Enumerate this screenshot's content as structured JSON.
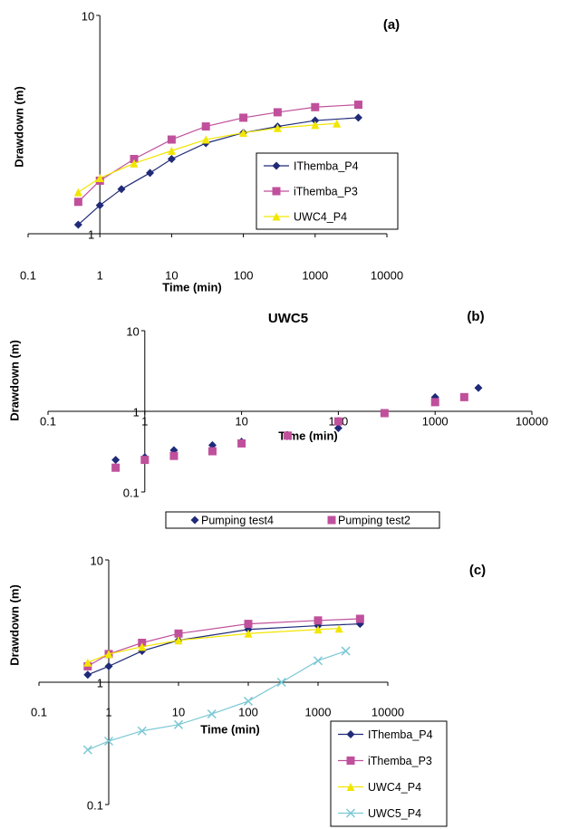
{
  "chart_data": [
    {
      "type": "line",
      "panel_label": "(a)",
      "x_label": "Time (min)",
      "y_label": "Drawdown (m)",
      "log_x": true,
      "log_y": true,
      "xlim": [
        0.1,
        10000
      ],
      "ylim": [
        1,
        10
      ],
      "xticks": [
        0.1,
        1,
        10,
        100,
        1000,
        10000
      ],
      "yticks": [
        1,
        10
      ],
      "axes_cross": [
        1,
        1
      ],
      "legend": "lower right",
      "series": [
        {
          "name": "IThemba_P4",
          "color": "#1f2a78",
          "marker": "diamond",
          "x": [
            0.5,
            1,
            2,
            5,
            10,
            30,
            100,
            300,
            1000,
            4000
          ],
          "values": [
            1.1,
            1.35,
            1.6,
            1.9,
            2.2,
            2.6,
            2.9,
            3.1,
            3.3,
            3.4
          ]
        },
        {
          "name": "iThemba_P3",
          "color": "#c0509c",
          "marker": "square",
          "x": [
            0.5,
            1,
            3,
            10,
            30,
            100,
            300,
            1000,
            4000
          ],
          "values": [
            1.4,
            1.75,
            2.2,
            2.7,
            3.1,
            3.4,
            3.6,
            3.8,
            3.9
          ]
        },
        {
          "name": "UWC4_P4",
          "color": "#f2e600",
          "marker": "triangle",
          "x": [
            0.5,
            1,
            3,
            10,
            30,
            100,
            300,
            1000,
            2000
          ],
          "values": [
            1.55,
            1.8,
            2.1,
            2.4,
            2.7,
            2.9,
            3.05,
            3.15,
            3.2
          ]
        }
      ]
    },
    {
      "type": "scatter",
      "title": "UWC5",
      "panel_label": "(b)",
      "x_label": "Time (min)",
      "y_label": "Drawdown (m)",
      "log_x": true,
      "log_y": true,
      "xlim": [
        0.1,
        10000
      ],
      "ylim": [
        0.1,
        10
      ],
      "xticks": [
        0.1,
        1,
        10,
        100,
        1000,
        10000
      ],
      "yticks": [
        0.1,
        1,
        10
      ],
      "axes_cross": [
        1,
        1
      ],
      "legend": "bottom",
      "series": [
        {
          "name": "Pumping test4",
          "color": "#1f2a78",
          "marker": "diamond",
          "x": [
            0.5,
            1,
            2,
            5,
            10,
            30,
            100,
            300,
            1000,
            2800
          ],
          "values": [
            0.25,
            0.27,
            0.33,
            0.38,
            0.42,
            0.5,
            0.62,
            0.95,
            1.5,
            1.95
          ]
        },
        {
          "name": "Pumping test2",
          "color": "#c0509c",
          "marker": "square",
          "x": [
            0.5,
            1,
            2,
            5,
            10,
            30,
            100,
            300,
            1000,
            2000
          ],
          "values": [
            0.2,
            0.25,
            0.28,
            0.32,
            0.4,
            0.5,
            0.75,
            0.95,
            1.3,
            1.5
          ]
        }
      ]
    },
    {
      "type": "line",
      "panel_label": "(c)",
      "x_label": "Time (min)",
      "y_label": "Drawdown (m)",
      "log_x": true,
      "log_y": true,
      "xlim": [
        0.1,
        10000
      ],
      "ylim": [
        0.1,
        10
      ],
      "xticks": [
        0.1,
        1,
        10,
        100,
        1000,
        10000
      ],
      "yticks": [
        0.1,
        1,
        10
      ],
      "axes_cross": [
        1,
        1
      ],
      "legend": "lower right",
      "series": [
        {
          "name": "IThemba_P4",
          "color": "#1f2a78",
          "marker": "diamond",
          "x": [
            0.5,
            1,
            3,
            10,
            100,
            1000,
            4000
          ],
          "values": [
            1.15,
            1.35,
            1.8,
            2.2,
            2.7,
            2.9,
            3.0
          ]
        },
        {
          "name": "iThemba_P3",
          "color": "#c0509c",
          "marker": "square",
          "x": [
            0.5,
            1,
            3,
            10,
            100,
            1000,
            4000
          ],
          "values": [
            1.35,
            1.7,
            2.1,
            2.5,
            3.0,
            3.2,
            3.3
          ]
        },
        {
          "name": "UWC4_P4",
          "color": "#f2e600",
          "marker": "triangle",
          "x": [
            0.5,
            1,
            3,
            10,
            100,
            1000,
            2000
          ],
          "values": [
            1.45,
            1.7,
            1.95,
            2.2,
            2.5,
            2.7,
            2.75
          ]
        },
        {
          "name": "UWC5_P4",
          "color": "#7cc8d4",
          "marker": "x",
          "x": [
            0.5,
            1,
            3,
            10,
            30,
            100,
            300,
            1000,
            2500
          ],
          "values": [
            0.28,
            0.33,
            0.4,
            0.45,
            0.55,
            0.7,
            1.0,
            1.5,
            1.8
          ]
        }
      ]
    }
  ]
}
